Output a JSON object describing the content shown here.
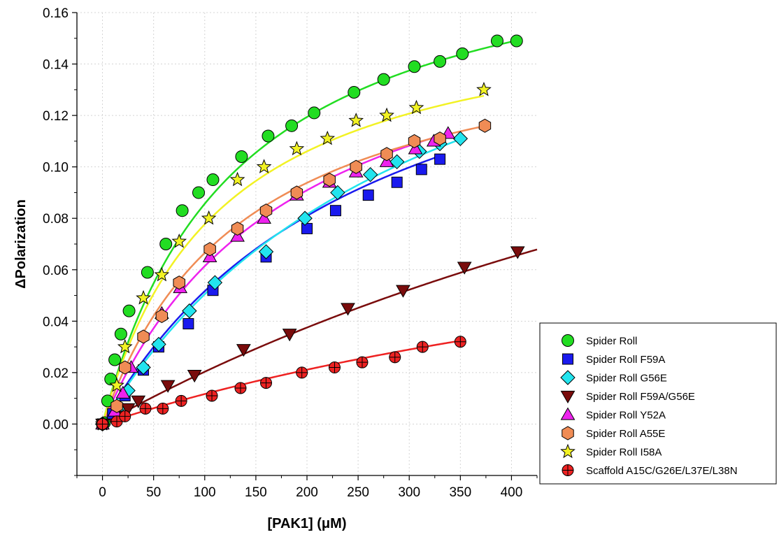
{
  "chart_data": {
    "type": "scatter",
    "xlabel": "[PAK1] (μM)",
    "ylabel": "ΔPolarization",
    "xlim": [
      -25,
      425
    ],
    "ylim": [
      -0.02,
      0.16
    ],
    "xticks": [
      0,
      50,
      100,
      150,
      200,
      250,
      300,
      350,
      400
    ],
    "yticks": [
      0.0,
      0.02,
      0.04,
      0.06,
      0.08,
      0.1,
      0.12,
      0.14,
      0.16
    ],
    "ytick_labels": [
      "0.00",
      "0.02",
      "0.04",
      "0.06",
      "0.08",
      "0.10",
      "0.12",
      "0.14",
      "0.16"
    ],
    "grid": true,
    "legend_position": "bottom-right",
    "series": [
      {
        "name": "Spider Roll",
        "marker": "circle",
        "color": "#22dd22",
        "fit_color": "#22dd22",
        "fit": {
          "bmax": 0.197,
          "kd": 130
        },
        "points": [
          [
            0,
            0.0
          ],
          [
            2,
            0.0005
          ],
          [
            5,
            0.009
          ],
          [
            8,
            0.0175
          ],
          [
            12,
            0.025
          ],
          [
            18,
            0.035
          ],
          [
            26,
            0.044
          ],
          [
            44,
            0.059
          ],
          [
            62,
            0.07
          ],
          [
            78,
            0.083
          ],
          [
            94,
            0.09
          ],
          [
            108,
            0.095
          ],
          [
            136,
            0.104
          ],
          [
            162,
            0.112
          ],
          [
            185,
            0.116
          ],
          [
            207,
            0.121
          ],
          [
            246,
            0.129
          ],
          [
            275,
            0.134
          ],
          [
            305,
            0.139
          ],
          [
            330,
            0.141
          ],
          [
            352,
            0.144
          ],
          [
            386,
            0.149
          ],
          [
            405,
            0.149
          ]
        ]
      },
      {
        "name": "Spider Roll F59A",
        "marker": "square",
        "color": "#1a1aee",
        "fit_color": "#1a1aee",
        "fit": {
          "bmax": 0.187,
          "kd": 262
        },
        "points": [
          [
            0,
            0.0
          ],
          [
            10,
            0.004
          ],
          [
            15,
            0.006
          ],
          [
            22,
            0.011
          ],
          [
            40,
            0.021
          ],
          [
            55,
            0.03
          ],
          [
            84,
            0.039
          ],
          [
            108,
            0.052
          ],
          [
            160,
            0.065
          ],
          [
            200,
            0.076
          ],
          [
            228,
            0.083
          ],
          [
            260,
            0.089
          ],
          [
            288,
            0.094
          ],
          [
            312,
            0.099
          ],
          [
            330,
            0.103
          ]
        ]
      },
      {
        "name": "Spider Roll G56E",
        "marker": "diamond",
        "color": "#22e4ee",
        "fit_color": "#22e4ee",
        "fit": {
          "bmax": 0.212,
          "kd": 320
        },
        "points": [
          [
            0,
            0.0
          ],
          [
            15,
            0.006
          ],
          [
            25,
            0.013
          ],
          [
            40,
            0.022
          ],
          [
            55,
            0.031
          ],
          [
            85,
            0.044
          ],
          [
            110,
            0.055
          ],
          [
            160,
            0.067
          ],
          [
            198,
            0.08
          ],
          [
            230,
            0.09
          ],
          [
            262,
            0.097
          ],
          [
            288,
            0.102
          ],
          [
            310,
            0.106
          ],
          [
            330,
            0.109
          ],
          [
            350,
            0.111
          ]
        ]
      },
      {
        "name": "Spider Roll F59A/G56E",
        "marker": "triangle-down",
        "color": "#7a0c0c",
        "fit_color": "#7a0c0c",
        "fit": {
          "bmax": 0.242,
          "kd": 1090
        },
        "points": [
          [
            0,
            0.0
          ],
          [
            15,
            0.003
          ],
          [
            25,
            0.006
          ],
          [
            35,
            0.009
          ],
          [
            64,
            0.015
          ],
          [
            90,
            0.019
          ],
          [
            138,
            0.029
          ],
          [
            183,
            0.035
          ],
          [
            240,
            0.045
          ],
          [
            294,
            0.052
          ],
          [
            354,
            0.061
          ],
          [
            406,
            0.067
          ]
        ]
      },
      {
        "name": "Spider Roll Y52A",
        "marker": "triangle-up",
        "color": "#ee22ee",
        "fit_color": "#ee22ee",
        "fit": {
          "bmax": 0.175,
          "kd": 185
        },
        "points": [
          [
            0,
            0.0
          ],
          [
            12,
            0.005
          ],
          [
            20,
            0.012
          ],
          [
            28,
            0.022
          ],
          [
            58,
            0.043
          ],
          [
            76,
            0.053
          ],
          [
            105,
            0.065
          ],
          [
            132,
            0.073
          ],
          [
            158,
            0.08
          ],
          [
            190,
            0.089
          ],
          [
            222,
            0.094
          ],
          [
            248,
            0.098
          ],
          [
            278,
            0.102
          ],
          [
            306,
            0.107
          ],
          [
            324,
            0.11
          ],
          [
            338,
            0.113
          ]
        ]
      },
      {
        "name": "Spider Roll A55E",
        "marker": "hexagon",
        "color": "#f08c55",
        "fit_color": "#f08c55",
        "fit": {
          "bmax": 0.159,
          "kd": 139
        },
        "points": [
          [
            0,
            0.0
          ],
          [
            14,
            0.007
          ],
          [
            22,
            0.022
          ],
          [
            40,
            0.034
          ],
          [
            58,
            0.042
          ],
          [
            75,
            0.055
          ],
          [
            105,
            0.068
          ],
          [
            132,
            0.076
          ],
          [
            160,
            0.083
          ],
          [
            190,
            0.09
          ],
          [
            222,
            0.095
          ],
          [
            248,
            0.1
          ],
          [
            278,
            0.105
          ],
          [
            305,
            0.11
          ],
          [
            330,
            0.111
          ],
          [
            374,
            0.116
          ]
        ]
      },
      {
        "name": "Spider Roll I58A",
        "marker": "star",
        "color": "#f2f224",
        "fit_color": "#f2f224",
        "fit": {
          "bmax": 0.167,
          "kd": 115
        },
        "points": [
          [
            0,
            0.0
          ],
          [
            14,
            0.015
          ],
          [
            22,
            0.03
          ],
          [
            40,
            0.049
          ],
          [
            58,
            0.058
          ],
          [
            75,
            0.071
          ],
          [
            104,
            0.08
          ],
          [
            132,
            0.095
          ],
          [
            158,
            0.1
          ],
          [
            190,
            0.107
          ],
          [
            220,
            0.111
          ],
          [
            248,
            0.118
          ],
          [
            278,
            0.12
          ],
          [
            307,
            0.123
          ],
          [
            373,
            0.13
          ]
        ]
      },
      {
        "name": "Scaffold A15C/G26E/L37E/L38N",
        "marker": "circle-plus",
        "color": "#ee2222",
        "fit_color": "#ee2222",
        "fit": {
          "bmax": 0.112,
          "kd": 860
        },
        "points": [
          [
            0,
            0.0
          ],
          [
            14,
            0.001
          ],
          [
            22,
            0.003
          ],
          [
            42,
            0.006
          ],
          [
            59,
            0.006
          ],
          [
            77,
            0.009
          ],
          [
            107,
            0.011
          ],
          [
            135,
            0.014
          ],
          [
            160,
            0.016
          ],
          [
            195,
            0.02
          ],
          [
            227,
            0.022
          ],
          [
            254,
            0.024
          ],
          [
            286,
            0.026
          ],
          [
            313,
            0.03
          ],
          [
            350,
            0.032
          ]
        ]
      }
    ]
  }
}
